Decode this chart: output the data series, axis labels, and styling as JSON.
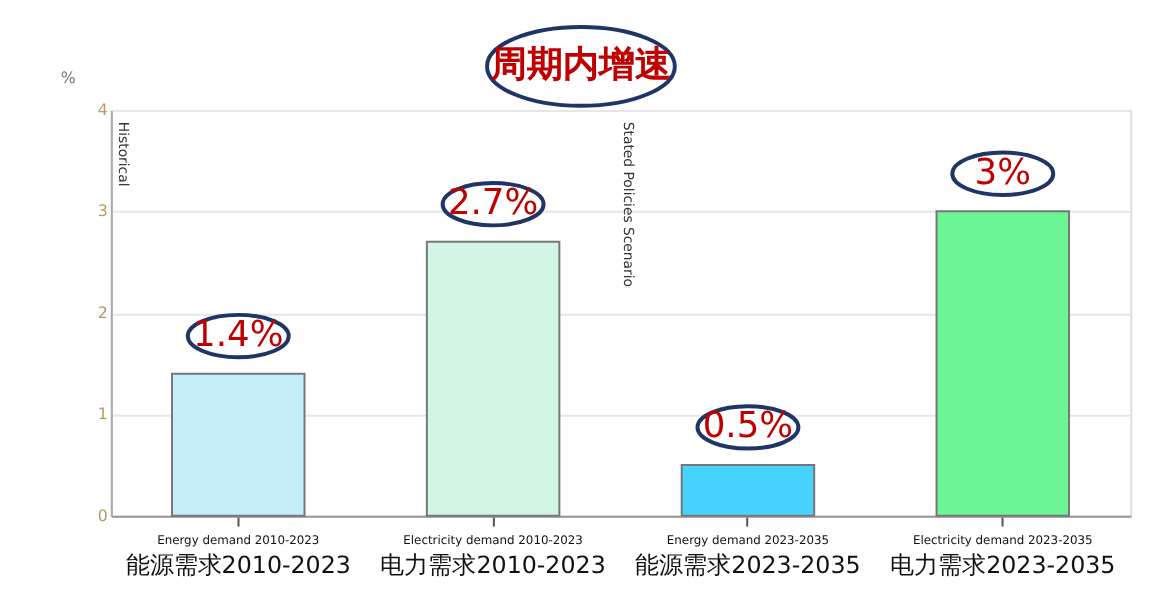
{
  "chart_data": {
    "type": "bar",
    "title": "周期内增速",
    "categories": [
      "Energy demand 2010-2023\n能源需求2010-2023",
      "Electricity demand 2010-2023\n电力需求2010-2023",
      "Energy demand 2023-2035\n能源需求2023-2035",
      "Electricity demand 2023-2035\n电力需求2023-2035"
    ],
    "values": [
      1.4,
      2.7,
      0.5,
      3
    ],
    "colors": [
      "#c6eefa",
      "#d0f5e2",
      "#48d2fe",
      "#6bf595"
    ],
    "value_labels": [
      "1.4%",
      "2.7%",
      "0.5%",
      "3%"
    ],
    "ylabel": "%",
    "ylim": [
      0,
      4
    ],
    "yticks": [
      0,
      1,
      2,
      3,
      4
    ],
    "grid": "y",
    "annotations": [
      "Historical",
      "Stated Policies Scenario"
    ]
  }
}
